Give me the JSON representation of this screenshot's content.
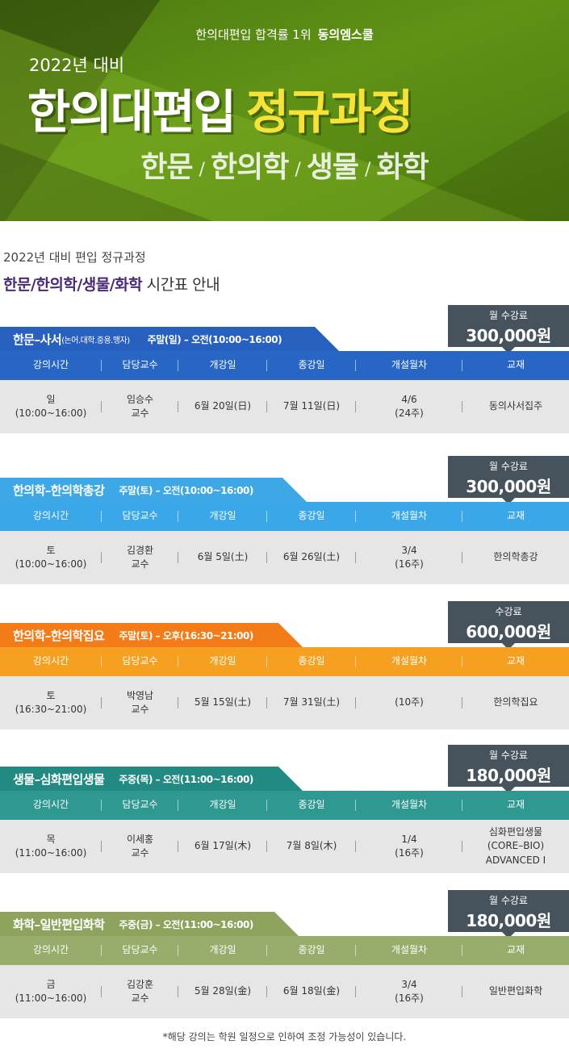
{
  "banner": {
    "tagline": "한의대편입 합격률 1위",
    "brand": "동의엠스쿨",
    "year_line": "2022년 대비",
    "title_white": "한의대편입",
    "title_yellow": "정규과정",
    "subjects": [
      "한문",
      "한의학",
      "생물",
      "화학"
    ],
    "separator": "/"
  },
  "intro": {
    "line1": "2022년 대비 편입 정규과정",
    "line2_bold": "한문/한의학/생물/화학",
    "line2_rest": " 시간표 안내"
  },
  "table_headers": [
    "강의시간",
    "담당교수",
    "개강일",
    "종강일",
    "개설월차",
    "교재"
  ],
  "courses": [
    {
      "name": "한문–사서",
      "note": "(논어.대학.중용.맹자)",
      "schedule": "주말(일) – 오전(10:00~16:00)",
      "fee_label": "월 수강료",
      "fee": "300,000원",
      "color": "#2766c4",
      "head_color": "#2860c0",
      "row": {
        "time": "일\n(10:00~16:00)",
        "professor": "임승수\n교수",
        "start": "6월 20일(日)",
        "end": "7월 11일(日)",
        "month": "4/6\n(24주)",
        "textbook": "동의사서집주"
      }
    },
    {
      "name": "한의학–한의학총강",
      "note": "",
      "schedule": "주말(토) – 오전(10:00~16:00)",
      "fee_label": "월 수강료",
      "fee": "300,000원",
      "color": "#3aa7e8",
      "head_color": "#3ea8e6",
      "row": {
        "time": "토\n(10:00~16:00)",
        "professor": "김경환\n교수",
        "start": "6월 5일(土)",
        "end": "6월 26일(土)",
        "month": "3/4\n(16주)",
        "textbook": "한의학총강"
      }
    },
    {
      "name": "한의학–한의학집요",
      "note": "",
      "schedule": "주말(토) – 오후(16:30~21:00)",
      "fee_label": "수강료",
      "fee": "600,000원",
      "color": "#f5a020",
      "head_color": "#f37b18",
      "row": {
        "time": "토\n(16:30~21:00)",
        "professor": "박영남\n교수",
        "start": "5월 15일(土)",
        "end": "7월 31일(土)",
        "month": "(10주)",
        "textbook": "한의학집요"
      }
    },
    {
      "name": "생물–심화편입생물",
      "note": "",
      "schedule": "주중(목) – 오전(11:00~16:00)",
      "fee_label": "월 수강료",
      "fee": "180,000원",
      "color": "#2f9890",
      "head_color": "#228a82",
      "row": {
        "time": "목\n(11:00~16:00)",
        "professor": "이세홍\n교수",
        "start": "6월 17일(木)",
        "end": "7월 8일(木)",
        "month": "1/4\n(16주)",
        "textbook": "심화편입생물\n(CORE–BIO)\nADVANCED Ⅰ"
      }
    },
    {
      "name": "화학–일반편입화학",
      "note": "",
      "schedule": "주중(금) – 오전(11:00~16:00)",
      "fee_label": "월 수강료",
      "fee": "180,000원",
      "color": "#97ad6b",
      "head_color": "#8ea35e",
      "row": {
        "time": "금\n(11:00~16:00)",
        "professor": "김강훈\n교수",
        "start": "5월 28일(金)",
        "end": "6월 18일(金)",
        "month": "3/4\n(16주)",
        "textbook": "일반편입화학"
      }
    }
  ],
  "footer_note": "*해당 강의는 학원 일정으로 인하여 조정 가능성이 있습니다."
}
